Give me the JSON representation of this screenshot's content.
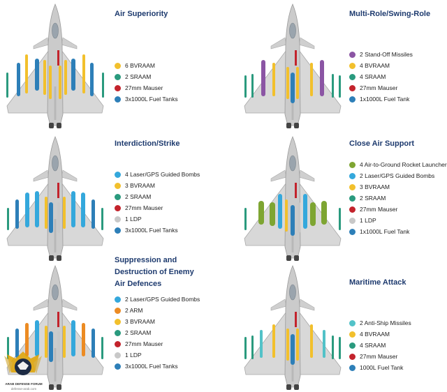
{
  "colors": {
    "bvraam": "#f2c02c",
    "sraam": "#2a9a7e",
    "mauser": "#c3232c",
    "fuel": "#2d7fb8",
    "standoff": "#8b55a4",
    "laser": "#34a8dc",
    "ldp": "#c8c8c8",
    "rocket": "#7ea532",
    "arm": "#ec8b23",
    "antiship": "#52c2c8",
    "title": "#1d3a6e",
    "jet": "#d6d6d6"
  },
  "panels": [
    {
      "title": "Air Superiority",
      "items": [
        {
          "label": "6 BVRAAM",
          "color": "#f2c02c"
        },
        {
          "label": "2 SRAAM",
          "color": "#2a9a7e"
        },
        {
          "label": "27mm Mauser",
          "color": "#c3232c"
        },
        {
          "label": "3x1000L Fuel Tanks",
          "color": "#2d7fb8"
        }
      ]
    },
    {
      "title": "Multi-Role/Swing-Role",
      "items": [
        {
          "label": "2 Stand-Off Missiles",
          "color": "#8b55a4"
        },
        {
          "label": "4 BVRAAM",
          "color": "#f2c02c"
        },
        {
          "label": "4 SRAAM",
          "color": "#2a9a7e"
        },
        {
          "label": "27mm Mauser",
          "color": "#c3232c"
        },
        {
          "label": "1x1000L Fuel Tank",
          "color": "#2d7fb8"
        }
      ]
    },
    {
      "title": "Interdiction/Strike",
      "items": [
        {
          "label": "4 Laser/GPS Guided Bombs",
          "color": "#34a8dc"
        },
        {
          "label": "3 BVRAAM",
          "color": "#f2c02c"
        },
        {
          "label": "2 SRAAM",
          "color": "#2a9a7e"
        },
        {
          "label": "27mm Mauser",
          "color": "#c3232c"
        },
        {
          "label": "1 LDP",
          "color": "#c8c8c8"
        },
        {
          "label": "3x1000L Fuel Tanks",
          "color": "#2d7fb8"
        }
      ]
    },
    {
      "title": "Close Air Support",
      "items": [
        {
          "label": "4 Air-to-Ground Rocket Launcher",
          "color": "#7ea532"
        },
        {
          "label": "2 Laser/GPS Guided Bombs",
          "color": "#34a8dc"
        },
        {
          "label": "3 BVRAAM",
          "color": "#f2c02c"
        },
        {
          "label": "2 SRAAM",
          "color": "#2a9a7e"
        },
        {
          "label": "27mm Mauser",
          "color": "#c3232c"
        },
        {
          "label": "1 LDP",
          "color": "#c8c8c8"
        },
        {
          "label": "1x1000L Fuel Tank",
          "color": "#2d7fb8"
        }
      ]
    },
    {
      "title_lines": [
        "Suppression and",
        "Destruction of Enemy",
        "Air Defences"
      ],
      "items": [
        {
          "label": "2 Laser/GPS Guided Bombs",
          "color": "#34a8dc"
        },
        {
          "label": "2 ARM",
          "color": "#ec8b23"
        },
        {
          "label": "3 BVRAAM",
          "color": "#f2c02c"
        },
        {
          "label": "2 SRAAM",
          "color": "#2a9a7e"
        },
        {
          "label": "27mm Mauser",
          "color": "#c3232c"
        },
        {
          "label": "1 LDP",
          "color": "#c8c8c8"
        },
        {
          "label": "3x1000L Fuel Tanks",
          "color": "#2d7fb8"
        }
      ]
    },
    {
      "title": "Maritime Attack",
      "items": [
        {
          "label": "2 Anti-Ship Missiles",
          "color": "#52c2c8"
        },
        {
          "label": "4 BVRAAM",
          "color": "#f2c02c"
        },
        {
          "label": "4 SRAAM",
          "color": "#2a9a7e"
        },
        {
          "label": "27mm Mauser",
          "color": "#c3232c"
        },
        {
          "label": "1000L Fuel Tank",
          "color": "#2d7fb8"
        }
      ]
    }
  ],
  "watermark": {
    "name": "ARAB DEFENSE FORUM",
    "url": "defense-arab.com"
  }
}
